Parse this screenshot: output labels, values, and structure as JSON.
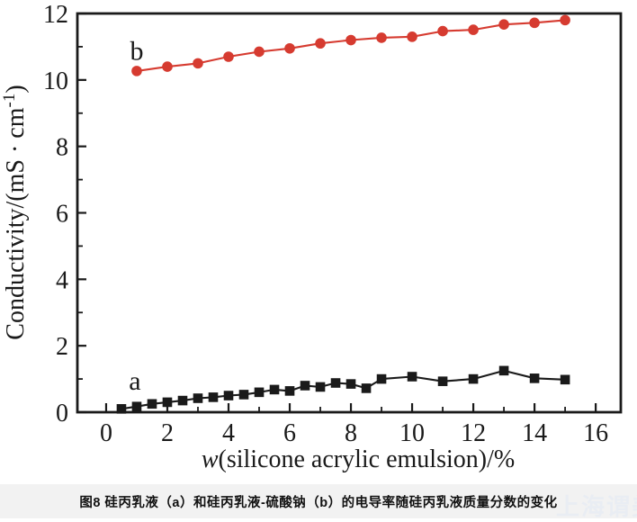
{
  "figure": {
    "caption": "图8  硅丙乳液（a）和硅丙乳液-硫酸钠（b）的电导率随硅丙乳液质量分数的变化",
    "watermark": "上海谓美"
  },
  "chart_data": {
    "type": "line",
    "title": "",
    "xlabel_italic": "w",
    "xlabel_rest": "(silicone acrylic emulsion)/%",
    "ylabel_prefix": "Conductivity/(mS · cm",
    "ylabel_superscript": "-1",
    "ylabel_suffix": ")",
    "xlim": [
      -0.94,
      16.82
    ],
    "ylim": [
      0,
      12
    ],
    "x_major_ticks": [
      0,
      2,
      4,
      6,
      8,
      10,
      12,
      14,
      16
    ],
    "x_minor_ticks": [
      1,
      3,
      5,
      7,
      9,
      11,
      13,
      15
    ],
    "y_major_ticks": [
      0,
      2,
      4,
      6,
      8,
      10,
      12
    ],
    "y_minor_ticks": [
      1,
      3,
      5,
      7,
      9,
      11
    ],
    "grid": false,
    "legend_position": "inline-letters",
    "axis_color": "#1a1a1a",
    "series": [
      {
        "name": "a",
        "marker": "square",
        "color": "#1a1a1a",
        "points": [
          [
            0.5,
            0.1
          ],
          [
            1,
            0.17
          ],
          [
            1.5,
            0.25
          ],
          [
            2,
            0.3
          ],
          [
            2.5,
            0.35
          ],
          [
            3,
            0.42
          ],
          [
            3.5,
            0.45
          ],
          [
            4,
            0.5
          ],
          [
            4.5,
            0.53
          ],
          [
            5,
            0.6
          ],
          [
            5.5,
            0.68
          ],
          [
            6,
            0.64
          ],
          [
            6.5,
            0.8
          ],
          [
            7,
            0.76
          ],
          [
            7.5,
            0.88
          ],
          [
            8,
            0.85
          ],
          [
            8.5,
            0.72
          ],
          [
            9,
            1.0
          ],
          [
            10,
            1.07
          ],
          [
            11,
            0.93
          ],
          [
            12,
            1.0
          ],
          [
            13,
            1.25
          ],
          [
            14,
            1.02
          ],
          [
            15,
            0.98
          ]
        ]
      },
      {
        "name": "b",
        "marker": "circle",
        "color": "#d63b30",
        "points": [
          [
            1,
            10.27
          ],
          [
            2,
            10.4
          ],
          [
            3,
            10.5
          ],
          [
            4,
            10.7
          ],
          [
            5,
            10.85
          ],
          [
            6,
            10.95
          ],
          [
            7,
            11.1
          ],
          [
            8,
            11.2
          ],
          [
            9,
            11.27
          ],
          [
            10,
            11.3
          ],
          [
            11,
            11.47
          ],
          [
            12,
            11.51
          ],
          [
            13,
            11.67
          ],
          [
            14,
            11.72
          ],
          [
            15,
            11.8
          ]
        ]
      }
    ],
    "annotations": [
      {
        "text": "a",
        "x": 0.94,
        "y": 0.68
      },
      {
        "text": "b",
        "x": 1.0,
        "y": 10.6
      }
    ]
  }
}
